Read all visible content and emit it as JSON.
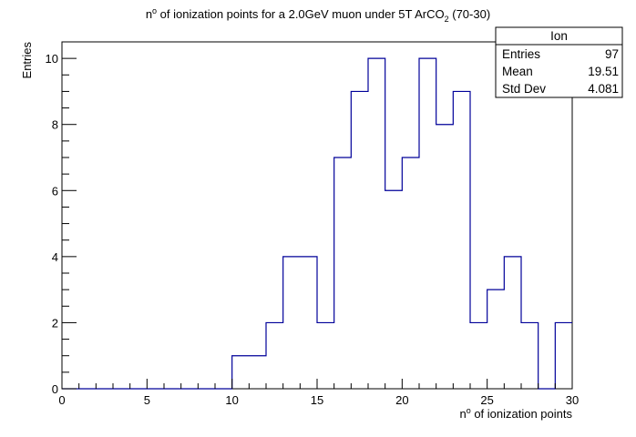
{
  "chart_data": {
    "type": "bar",
    "style": "step-histogram",
    "title_parts": {
      "pre": "n",
      "sup": "o",
      "mid": " of ionization points for a 2.0GeV muon under 5T ArCO",
      "sub": "2",
      "post": " (70-30)"
    },
    "xlabel_parts": {
      "pre": "n",
      "sup": "o",
      "post": " of ionization points"
    },
    "ylabel": "Entries",
    "xlim": [
      0,
      30
    ],
    "ylim": [
      0,
      10.5
    ],
    "x_ticks": [
      "0",
      "5",
      "10",
      "15",
      "20",
      "25",
      "30"
    ],
    "y_ticks": [
      "0",
      "2",
      "4",
      "6",
      "8",
      "10"
    ],
    "bin_width": 1,
    "bin_edges": [
      0,
      1,
      2,
      3,
      4,
      5,
      6,
      7,
      8,
      9,
      10,
      11,
      12,
      13,
      14,
      15,
      16,
      17,
      18,
      19,
      20,
      21,
      22,
      23,
      24,
      25,
      26,
      27,
      28,
      29,
      30
    ],
    "values": [
      0,
      0,
      0,
      0,
      0,
      0,
      0,
      0,
      0,
      0,
      1,
      1,
      2,
      4,
      4,
      2,
      7,
      9,
      10,
      6,
      7,
      10,
      8,
      9,
      2,
      3,
      4,
      2,
      0,
      2
    ],
    "line_color": "#000099",
    "grid": false,
    "stats_box": {
      "name": "Ion",
      "position": "top-right",
      "rows": [
        {
          "label": "Entries",
          "value": "97"
        },
        {
          "label": "Mean",
          "value": "19.51"
        },
        {
          "label": "Std Dev",
          "value": "4.081"
        }
      ]
    }
  }
}
